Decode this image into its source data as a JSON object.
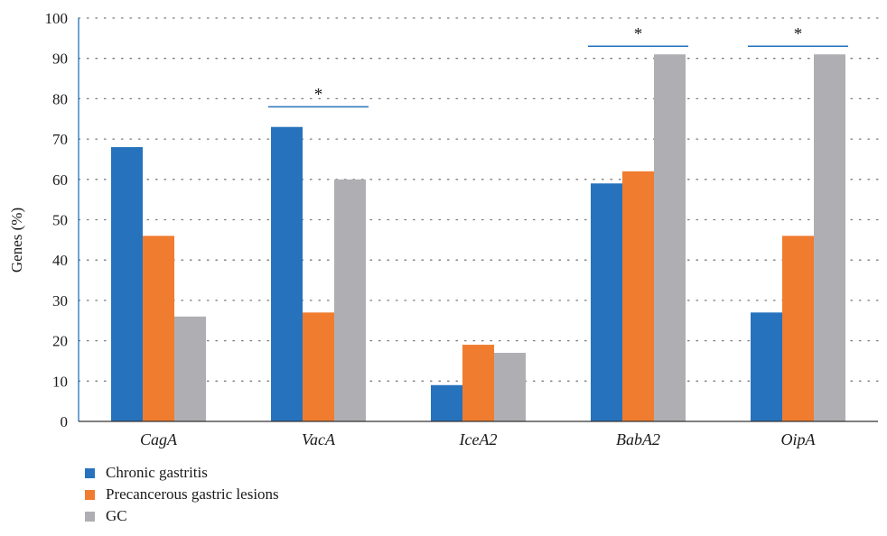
{
  "chart_data": {
    "type": "bar",
    "ylabel": "Genes (%)",
    "ylim": [
      0,
      100
    ],
    "yticks": [
      0,
      10,
      20,
      30,
      40,
      50,
      60,
      70,
      80,
      90,
      100
    ],
    "grid": true,
    "legend_position": "bottom-left",
    "categories": [
      "CagA",
      "VacA",
      "IceA2",
      "BabA2",
      "OipA"
    ],
    "series": [
      {
        "name": "Chronic gastritis",
        "color": "#2672BD",
        "values": [
          68,
          73,
          9,
          59,
          27
        ]
      },
      {
        "name": "Precancerous gastric lesions",
        "color": "#F07C2F",
        "values": [
          46,
          27,
          19,
          62,
          46
        ]
      },
      {
        "name": "GC",
        "color": "#AFAFB3",
        "values": [
          26,
          60,
          17,
          91,
          91
        ]
      }
    ],
    "significance": [
      {
        "category": "VacA",
        "label": "*",
        "level": 78
      },
      {
        "category": "BabA2",
        "label": "*",
        "level": 93
      },
      {
        "category": "OipA",
        "label": "*",
        "level": 93
      }
    ]
  }
}
